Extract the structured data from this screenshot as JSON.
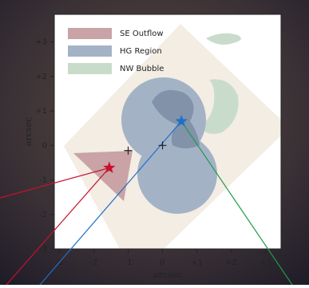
{
  "chart_data": {
    "type": "region-map",
    "xlabel": "arcsec",
    "ylabel": "arcsec",
    "xlim": [
      -3.15,
      3.45
    ],
    "ylim": [
      -3,
      3.8
    ],
    "xticks": [
      -3,
      -2,
      -1,
      0,
      {
        "value": 1,
        "label": "+1"
      },
      {
        "value": 2,
        "label": "+2"
      },
      {
        "value": 3,
        "label": "+3"
      }
    ],
    "yticks": [
      -3,
      -2,
      -1,
      0,
      {
        "value": 1,
        "label": "+1"
      },
      {
        "value": 2,
        "label": "+2"
      },
      {
        "value": 3,
        "label": "+3"
      }
    ],
    "legend": [
      {
        "name": "SE Outflow",
        "color": "#c9a3a6"
      },
      {
        "name": "HG Region",
        "color": "#a4b2c6"
      },
      {
        "name": "NW Bubble",
        "color": "#c9dccb"
      }
    ],
    "markers": [
      {
        "x": -1.55,
        "y": -0.65,
        "shape": "star",
        "color": "#c8102e"
      },
      {
        "x": 0.55,
        "y": 0.7,
        "shape": "star",
        "color": "#1f6fc8"
      },
      {
        "x": -1.0,
        "y": -0.15,
        "shape": "plus",
        "color": "#222222"
      },
      {
        "x": 0,
        "y": 0,
        "shape": "plus",
        "color": "#222222"
      }
    ]
  }
}
